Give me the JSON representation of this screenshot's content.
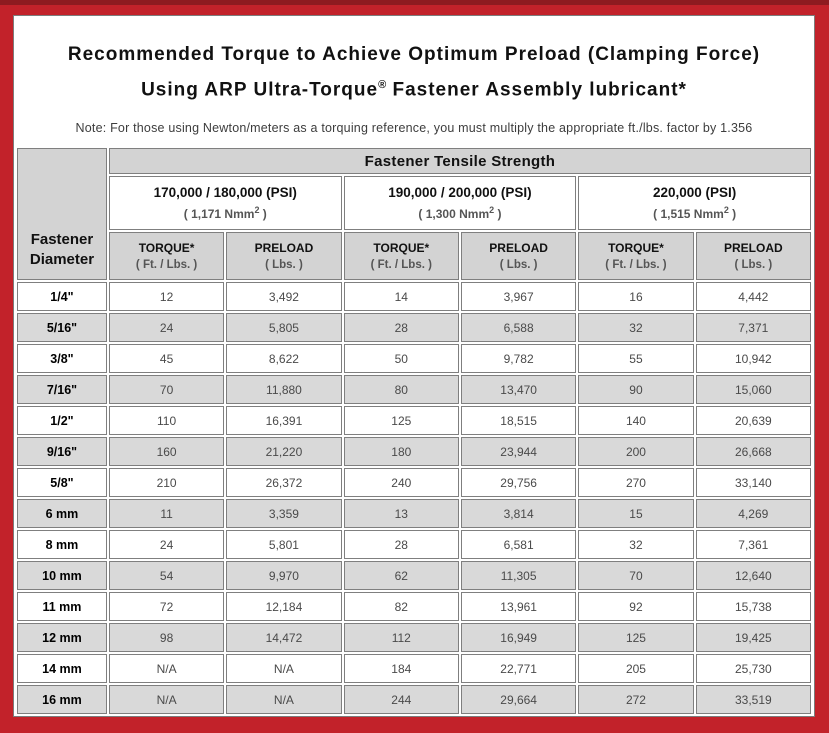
{
  "title": {
    "line1": "Recommended Torque to Achieve Optimum Preload (Clamping Force)",
    "line2_prefix": "Using ARP Ultra-Torque",
    "line2_sup": "®",
    "line2_suffix": " Fastener Assembly lubricant*"
  },
  "note": "Note: For those using Newton/meters as a torquing reference, you must multiply the appropriate ft./lbs. factor by 1.356",
  "table": {
    "diameter_header": "Fastener\nDiameter",
    "tensile_header": "Fastener Tensile Strength",
    "strength_groups": [
      {
        "psi": "170,000 / 180,000 (PSI)",
        "metric_prefix": "( 1,171 Nmm",
        "metric_sup": "2",
        "metric_suffix": " )"
      },
      {
        "psi": "190,000 / 200,000 (PSI)",
        "metric_prefix": "( 1,300 Nmm",
        "metric_sup": "2",
        "metric_suffix": " )"
      },
      {
        "psi": "220,000 (PSI)",
        "metric_prefix": "( 1,515 Nmm",
        "metric_sup": "2",
        "metric_suffix": " )"
      }
    ],
    "col_headers": {
      "torque_label": "TORQUE*",
      "torque_unit": "( Ft. / Lbs. )",
      "preload_label": "PRELOAD",
      "preload_unit": "( Lbs. )"
    },
    "rows": [
      {
        "diameter": "1/4\"",
        "values": [
          "12",
          "3,492",
          "14",
          "3,967",
          "16",
          "4,442"
        ]
      },
      {
        "diameter": "5/16\"",
        "values": [
          "24",
          "5,805",
          "28",
          "6,588",
          "32",
          "7,371"
        ]
      },
      {
        "diameter": "3/8\"",
        "values": [
          "45",
          "8,622",
          "50",
          "9,782",
          "55",
          "10,942"
        ]
      },
      {
        "diameter": "7/16\"",
        "values": [
          "70",
          "11,880",
          "80",
          "13,470",
          "90",
          "15,060"
        ]
      },
      {
        "diameter": "1/2\"",
        "values": [
          "110",
          "16,391",
          "125",
          "18,515",
          "140",
          "20,639"
        ]
      },
      {
        "diameter": "9/16\"",
        "values": [
          "160",
          "21,220",
          "180",
          "23,944",
          "200",
          "26,668"
        ]
      },
      {
        "diameter": "5/8\"",
        "values": [
          "210",
          "26,372",
          "240",
          "29,756",
          "270",
          "33,140"
        ]
      },
      {
        "diameter": "6 mm",
        "values": [
          "11",
          "3,359",
          "13",
          "3,814",
          "15",
          "4,269"
        ]
      },
      {
        "diameter": "8 mm",
        "values": [
          "24",
          "5,801",
          "28",
          "6,581",
          "32",
          "7,361"
        ]
      },
      {
        "diameter": "10 mm",
        "values": [
          "54",
          "9,970",
          "62",
          "11,305",
          "70",
          "12,640"
        ]
      },
      {
        "diameter": "11 mm",
        "values": [
          "72",
          "12,184",
          "82",
          "13,961",
          "92",
          "15,738"
        ]
      },
      {
        "diameter": "12 mm",
        "values": [
          "98",
          "14,472",
          "112",
          "16,949",
          "125",
          "19,425"
        ]
      },
      {
        "diameter": "14 mm",
        "values": [
          "N/A",
          "N/A",
          "184",
          "22,771",
          "205",
          "25,730"
        ]
      },
      {
        "diameter": "16 mm",
        "values": [
          "N/A",
          "N/A",
          "244",
          "29,664",
          "272",
          "33,519"
        ]
      }
    ]
  },
  "colors": {
    "border_red": "#c2222a",
    "border_dark_red": "#8e1b20",
    "header_gray": "#d3d3d3",
    "stripe_gray": "#d9d9d9",
    "cell_border": "#7f7f7f"
  }
}
